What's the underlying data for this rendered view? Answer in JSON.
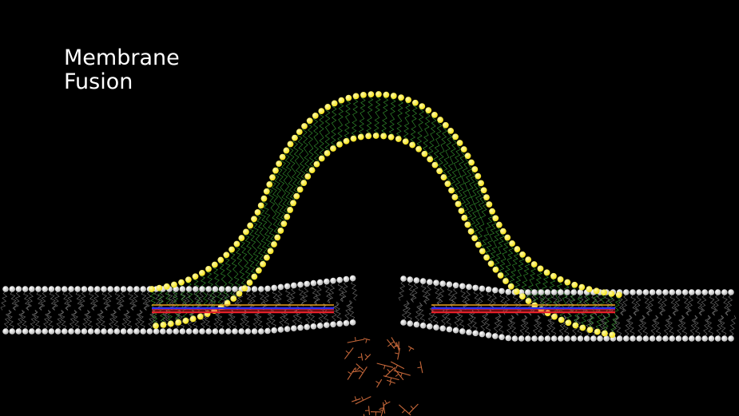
{
  "title": {
    "line1": "Membrane",
    "line2": "Fusion"
  },
  "colors": {
    "background": "#000000",
    "vesicle_head": "#f5e21a",
    "bilayer_head": "#b9b9b9",
    "vesicle_tail": "#3fb43a",
    "bilayer_tail": "#8a8a8a",
    "protein_red": "#e8202a",
    "protein_blue": "#2f2ff0",
    "protein_orange": "#e8a020",
    "debris": "#c7683a"
  }
}
